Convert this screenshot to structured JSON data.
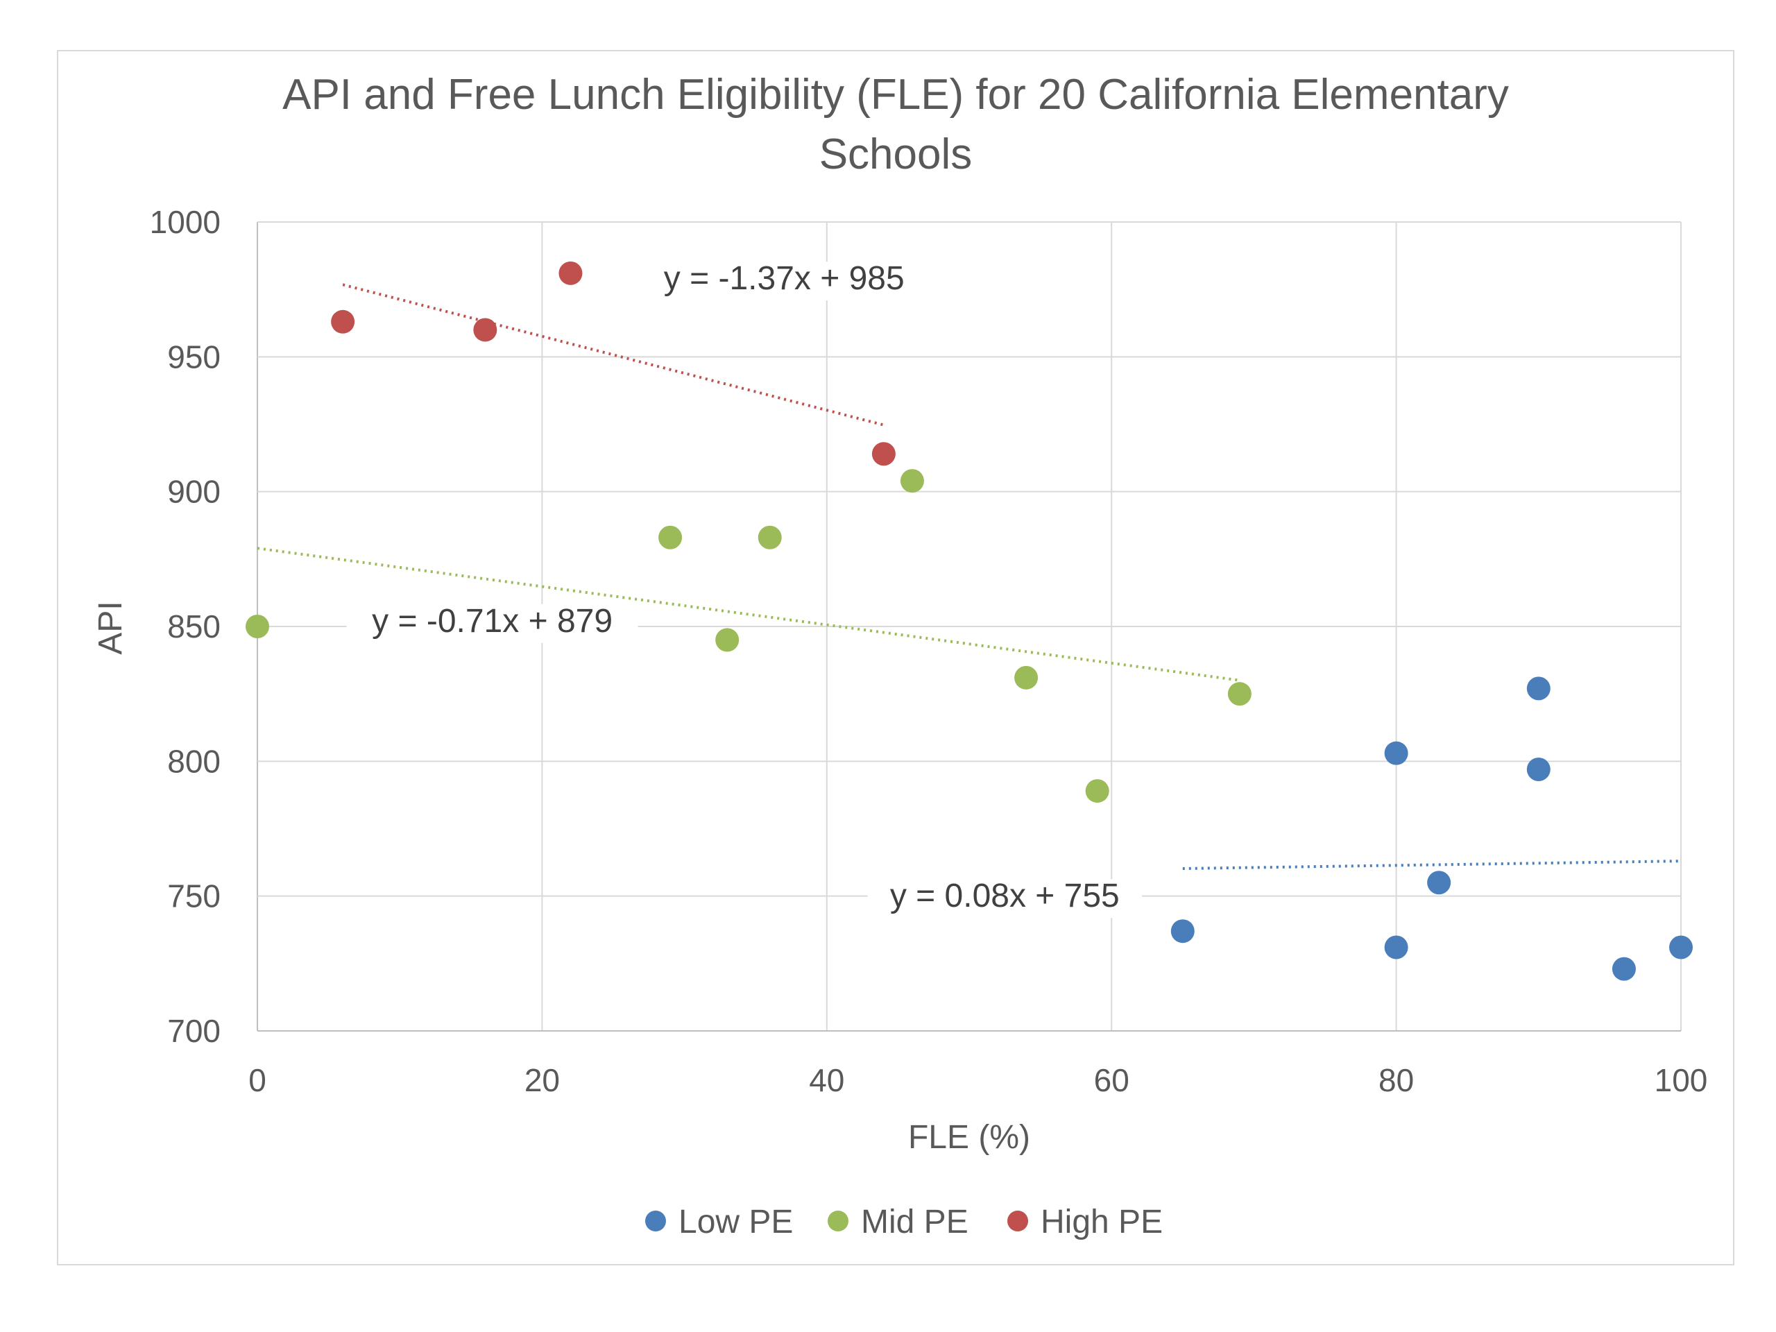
{
  "chart_data": {
    "type": "scatter",
    "title": "API and Free Lunch Eligibility (FLE) for 20 California Elementary Schools",
    "title_lines": [
      "API and Free Lunch Eligibility (FLE) for 20 California Elementary",
      "Schools"
    ],
    "xlabel": "FLE (%)",
    "ylabel": "API",
    "xlim": [
      0,
      100
    ],
    "ylim": [
      700,
      1000
    ],
    "xticks": [
      "0",
      "20",
      "40",
      "60",
      "80",
      "100"
    ],
    "yticks": [
      "700",
      "750",
      "800",
      "850",
      "900",
      "950",
      "1000"
    ],
    "grid": true,
    "legend_position": "bottom",
    "series": [
      {
        "name": "Low PE",
        "color": "#4a7ebb",
        "points": [
          [
            65,
            737
          ],
          [
            80,
            731
          ],
          [
            80,
            803
          ],
          [
            83,
            755
          ],
          [
            90,
            827
          ],
          [
            90,
            797
          ],
          [
            96,
            723
          ],
          [
            100,
            731
          ]
        ],
        "trendline": {
          "equation": "y = 0.08x + 755",
          "slope": 0.08,
          "intercept": 755,
          "x_range": [
            65,
            100
          ]
        }
      },
      {
        "name": "Mid PE",
        "color": "#9bbb59",
        "points": [
          [
            0,
            850
          ],
          [
            29,
            883
          ],
          [
            33,
            845
          ],
          [
            36,
            883
          ],
          [
            46,
            904
          ],
          [
            54,
            831
          ],
          [
            59,
            789
          ],
          [
            69,
            825
          ]
        ],
        "trendline": {
          "equation": "y = -0.71x + 879",
          "slope": -0.71,
          "intercept": 879,
          "x_range": [
            0,
            69
          ]
        }
      },
      {
        "name": "High PE",
        "color": "#c0504d",
        "points": [
          [
            6,
            963
          ],
          [
            16,
            960
          ],
          [
            22,
            981
          ],
          [
            44,
            914
          ]
        ],
        "trendline": {
          "equation": "y = -1.37x + 985",
          "slope": -1.37,
          "intercept": 985,
          "x_range": [
            6,
            44
          ]
        }
      }
    ]
  }
}
